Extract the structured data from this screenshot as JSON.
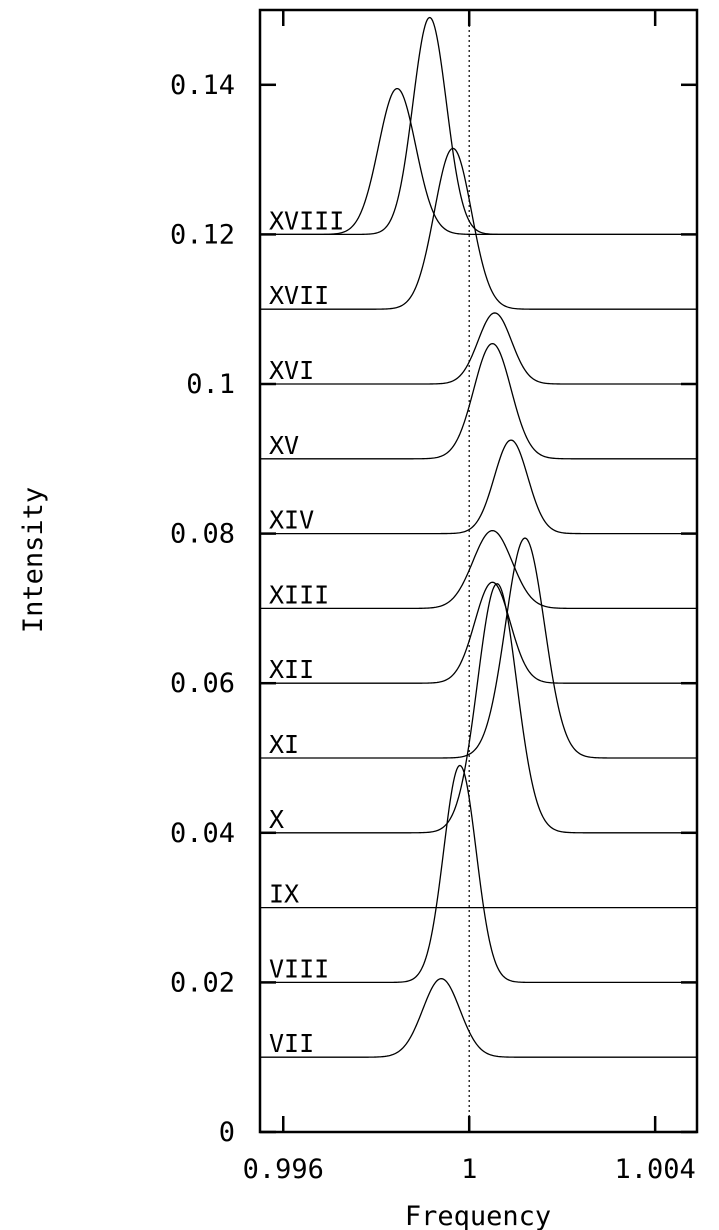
{
  "chart_data": {
    "type": "line",
    "title": "",
    "xlabel": "Frequency",
    "ylabel": "Intensity",
    "xlim": [
      0.9955,
      1.0049
    ],
    "ylim": [
      0,
      0.15
    ],
    "x_ticks": [
      {
        "value": 0.996,
        "label": "0.996"
      },
      {
        "value": 1.0,
        "label": "1"
      },
      {
        "value": 1.004,
        "label": "1.004"
      }
    ],
    "y_ticks": [
      {
        "value": 0,
        "label": "0"
      },
      {
        "value": 0.02,
        "label": "0.02"
      },
      {
        "value": 0.04,
        "label": "0.04"
      },
      {
        "value": 0.06,
        "label": "0.06"
      },
      {
        "value": 0.08,
        "label": "0.08"
      },
      {
        "value": 0.1,
        "label": "0.1"
      },
      {
        "value": 0.12,
        "label": "0.12"
      },
      {
        "value": 0.14,
        "label": "0.14"
      }
    ],
    "reference_line": {
      "x": 1.0,
      "style": "dotted"
    },
    "grid": false,
    "legend": "none",
    "series": [
      {
        "label": "VII",
        "baseline": 0.01,
        "peak_x": 0.9994,
        "peak_y": 0.0205,
        "width": 0.0004
      },
      {
        "label": "VIII",
        "baseline": 0.02,
        "peak_x": 0.9998,
        "peak_y": 0.049,
        "width": 0.00035
      },
      {
        "label": "IX",
        "baseline": 0.03,
        "peak_x": null,
        "peak_y": null,
        "width": null
      },
      {
        "label": "X",
        "baseline": 0.04,
        "peak_x": 1.0006,
        "peak_y": 0.0733,
        "width": 0.00042
      },
      {
        "label": "XI",
        "baseline": 0.05,
        "peak_x": 1.0012,
        "peak_y": 0.0794,
        "width": 0.00042
      },
      {
        "label": "XII",
        "baseline": 0.06,
        "peak_x": 1.0005,
        "peak_y": 0.0735,
        "width": 0.00038
      },
      {
        "label": "XIII",
        "baseline": 0.07,
        "peak_x": 1.0005,
        "peak_y": 0.0804,
        "width": 0.00042
      },
      {
        "label": "XIV",
        "baseline": 0.08,
        "peak_x": 1.0009,
        "peak_y": 0.0925,
        "width": 0.00036
      },
      {
        "label": "XV",
        "baseline": 0.09,
        "peak_x": 1.0005,
        "peak_y": 0.1054,
        "width": 0.0004
      },
      {
        "label": "XVI",
        "baseline": 0.1,
        "peak_x": 1.00055,
        "peak_y": 0.1095,
        "width": 0.00036
      },
      {
        "label": "XVII",
        "baseline": 0.11,
        "peak_x": 0.99965,
        "peak_y": 0.1315,
        "width": 0.0004
      },
      {
        "label": "XVIII",
        "baseline": 0.12,
        "peak_x": 0.99845,
        "peak_y": 0.1395,
        "width": 0.0004
      },
      {
        "label": "",
        "baseline": 0.12,
        "peak_x": 0.99915,
        "peak_y": 0.149,
        "width": 0.00036
      }
    ],
    "line_color": "#000000"
  }
}
